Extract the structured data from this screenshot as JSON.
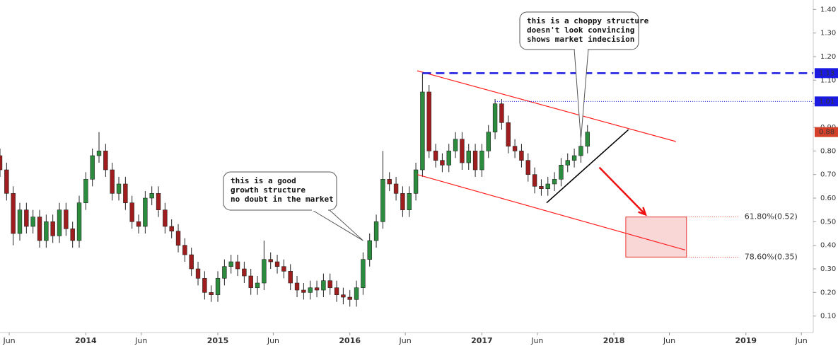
{
  "chart_data": {
    "type": "candlestick",
    "up_color": "#2a8c3c",
    "down_color": "#a01d1d",
    "xlim": [
      2013.35,
      2019.51
    ],
    "ylim": [
      0.03,
      1.44
    ],
    "xticks": [
      {
        "value": 2013.42,
        "label": "Jun"
      },
      2014,
      {
        "value": 2014.42,
        "label": "Jun"
      },
      2015,
      {
        "value": 2015.42,
        "label": "Jun"
      },
      2016,
      {
        "value": 2016.42,
        "label": "Jun"
      },
      2017,
      {
        "value": 2017.42,
        "label": "Jun"
      },
      2018,
      {
        "value": 2018.42,
        "label": "Jun"
      },
      2019,
      {
        "value": 2019.42,
        "label": "Jun"
      }
    ],
    "yticks": [
      {
        "value": 0.1,
        "label": "0.10"
      },
      {
        "value": 0.2,
        "label": "0.20"
      },
      {
        "value": 0.3,
        "label": "0.30"
      },
      {
        "value": 0.4,
        "label": "0.40"
      },
      {
        "value": 0.5,
        "label": "0.50"
      },
      {
        "value": 0.6,
        "label": "0.60"
      },
      {
        "value": 0.7,
        "label": "0.70"
      },
      {
        "value": 0.8,
        "label": "0.80"
      },
      {
        "value": 0.9,
        "label": "0.90"
      },
      {
        "value": 1.0,
        "label": "1.00"
      },
      {
        "value": 1.1,
        "label": "1.10"
      },
      {
        "value": 1.2,
        "label": "1.20"
      },
      {
        "value": 1.3,
        "label": "1.30"
      },
      {
        "value": 1.4,
        "label": "1.40"
      }
    ],
    "grid": false,
    "x": [
      2013.35,
      2013.4,
      2013.45,
      2013.5,
      2013.55,
      2013.6,
      2013.65,
      2013.7,
      2013.75,
      2013.8,
      2013.85,
      2013.9,
      2013.95,
      2014.0,
      2014.05,
      2014.1,
      2014.15,
      2014.2,
      2014.25,
      2014.3,
      2014.35,
      2014.4,
      2014.45,
      2014.5,
      2014.55,
      2014.6,
      2014.65,
      2014.7,
      2014.75,
      2014.8,
      2014.85,
      2014.9,
      2014.95,
      2015.0,
      2015.05,
      2015.1,
      2015.15,
      2015.2,
      2015.25,
      2015.3,
      2015.35,
      2015.4,
      2015.45,
      2015.5,
      2015.55,
      2015.6,
      2015.65,
      2015.7,
      2015.75,
      2015.8,
      2015.85,
      2015.9,
      2015.95,
      2016.0,
      2016.05,
      2016.1,
      2016.15,
      2016.2,
      2016.25,
      2016.3,
      2016.35,
      2016.4,
      2016.45,
      2016.5,
      2016.55,
      2016.6,
      2016.65,
      2016.7,
      2016.75,
      2016.8,
      2016.85,
      2016.9,
      2016.95,
      2017.0,
      2017.05,
      2017.1,
      2017.15,
      2017.2,
      2017.25,
      2017.3,
      2017.35,
      2017.4,
      2017.45,
      2017.5,
      2017.55,
      2017.6,
      2017.65,
      2017.7,
      2017.75,
      2017.8
    ],
    "open": [
      0.78,
      0.72,
      0.62,
      0.45,
      0.55,
      0.48,
      0.52,
      0.42,
      0.5,
      0.44,
      0.55,
      0.47,
      0.42,
      0.58,
      0.68,
      0.78,
      0.8,
      0.72,
      0.62,
      0.66,
      0.58,
      0.5,
      0.48,
      0.6,
      0.62,
      0.55,
      0.48,
      0.46,
      0.4,
      0.36,
      0.3,
      0.26,
      0.2,
      0.19,
      0.26,
      0.31,
      0.33,
      0.3,
      0.27,
      0.22,
      0.24,
      0.34,
      0.33,
      0.31,
      0.29,
      0.24,
      0.21,
      0.2,
      0.22,
      0.21,
      0.25,
      0.22,
      0.19,
      0.18,
      0.17,
      0.22,
      0.34,
      0.42,
      0.5,
      0.68,
      0.66,
      0.62,
      0.55,
      0.62,
      0.72,
      1.05,
      0.8,
      0.76,
      0.74,
      0.8,
      0.85,
      0.75,
      0.8,
      0.72,
      0.8,
      0.88,
      1.0,
      0.92,
      0.82,
      0.8,
      0.76,
      0.7,
      0.65,
      0.64,
      0.66,
      0.68,
      0.74,
      0.76,
      0.78,
      0.82
    ],
    "high": [
      0.81,
      0.75,
      0.65,
      0.58,
      0.58,
      0.55,
      0.55,
      0.53,
      0.53,
      0.58,
      0.58,
      0.5,
      0.61,
      0.71,
      0.81,
      0.88,
      0.83,
      0.75,
      0.69,
      0.69,
      0.61,
      0.53,
      0.63,
      0.65,
      0.65,
      0.58,
      0.51,
      0.49,
      0.43,
      0.39,
      0.33,
      0.29,
      0.23,
      0.29,
      0.34,
      0.36,
      0.36,
      0.33,
      0.3,
      0.27,
      0.42,
      0.37,
      0.36,
      0.34,
      0.32,
      0.27,
      0.24,
      0.25,
      0.25,
      0.28,
      0.28,
      0.25,
      0.22,
      0.21,
      0.25,
      0.37,
      0.45,
      0.53,
      0.8,
      0.71,
      0.69,
      0.65,
      0.65,
      0.75,
      1.13,
      1.08,
      0.83,
      0.79,
      0.83,
      0.88,
      0.88,
      0.83,
      0.83,
      0.83,
      0.91,
      1.02,
      1.02,
      0.95,
      0.85,
      0.83,
      0.79,
      0.73,
      0.68,
      0.69,
      0.71,
      0.77,
      0.79,
      0.81,
      0.85,
      0.91
    ],
    "low": [
      0.69,
      0.59,
      0.4,
      0.42,
      0.45,
      0.45,
      0.39,
      0.39,
      0.41,
      0.41,
      0.44,
      0.39,
      0.39,
      0.55,
      0.65,
      0.75,
      0.69,
      0.59,
      0.59,
      0.55,
      0.47,
      0.45,
      0.45,
      0.57,
      0.52,
      0.45,
      0.43,
      0.37,
      0.33,
      0.27,
      0.23,
      0.17,
      0.16,
      0.16,
      0.23,
      0.28,
      0.27,
      0.24,
      0.19,
      0.19,
      0.21,
      0.3,
      0.28,
      0.26,
      0.21,
      0.18,
      0.17,
      0.17,
      0.18,
      0.18,
      0.19,
      0.16,
      0.15,
      0.14,
      0.14,
      0.19,
      0.31,
      0.39,
      0.47,
      0.63,
      0.59,
      0.52,
      0.52,
      0.59,
      0.69,
      0.77,
      0.73,
      0.71,
      0.71,
      0.77,
      0.72,
      0.72,
      0.69,
      0.69,
      0.77,
      0.85,
      0.89,
      0.79,
      0.77,
      0.73,
      0.67,
      0.62,
      0.61,
      0.61,
      0.63,
      0.65,
      0.71,
      0.73,
      0.75,
      0.79
    ],
    "close": [
      0.72,
      0.62,
      0.45,
      0.55,
      0.48,
      0.52,
      0.42,
      0.5,
      0.44,
      0.55,
      0.47,
      0.42,
      0.58,
      0.68,
      0.78,
      0.8,
      0.72,
      0.62,
      0.66,
      0.58,
      0.5,
      0.48,
      0.6,
      0.62,
      0.55,
      0.48,
      0.46,
      0.4,
      0.36,
      0.3,
      0.26,
      0.2,
      0.19,
      0.26,
      0.31,
      0.33,
      0.3,
      0.27,
      0.22,
      0.24,
      0.34,
      0.33,
      0.31,
      0.29,
      0.24,
      0.21,
      0.2,
      0.22,
      0.21,
      0.25,
      0.22,
      0.19,
      0.18,
      0.17,
      0.22,
      0.34,
      0.42,
      0.5,
      0.68,
      0.66,
      0.62,
      0.55,
      0.62,
      0.72,
      1.05,
      0.8,
      0.76,
      0.74,
      0.8,
      0.85,
      0.75,
      0.8,
      0.72,
      0.8,
      0.88,
      1.0,
      0.92,
      0.82,
      0.8,
      0.76,
      0.7,
      0.65,
      0.64,
      0.66,
      0.68,
      0.74,
      0.76,
      0.78,
      0.82,
      0.88
    ],
    "last_price_color": "#d4402a",
    "price_lines": [
      {
        "value": 1.13,
        "from": 2016.55,
        "color": "#1a1ae0",
        "style": "dashed"
      },
      {
        "value": 1.01,
        "from": 2017.1,
        "color": "#1a1ae0",
        "style": "dotted"
      }
    ],
    "trendlines": [
      {
        "color": "#ff2020",
        "points": [
          [
            2016.51,
            1.14
          ],
          [
            2018.47,
            0.84
          ]
        ]
      },
      {
        "color": "#ff2020",
        "points": [
          [
            2016.51,
            0.7
          ],
          [
            2018.54,
            0.38
          ]
        ]
      },
      {
        "color": "#000000",
        "points": [
          [
            2017.49,
            0.58
          ],
          [
            2018.11,
            0.89
          ]
        ]
      }
    ],
    "arrow": {
      "color": "#ee1111",
      "points": [
        [
          2017.89,
          0.73
        ],
        [
          2018.24,
          0.53
        ]
      ]
    },
    "fib_zone": {
      "color": "#e53935",
      "x": [
        2018.09,
        2018.55
      ],
      "levels": [
        {
          "value": 0.52,
          "label": "61.80%(0.52)"
        },
        {
          "value": 0.35,
          "label": "78.60%(0.35)"
        }
      ]
    },
    "callouts": [
      {
        "lines": [
          "this is a good",
          "growth structure",
          "no doubt in the market"
        ],
        "target": [
          2016.1,
          0.42
        ]
      },
      {
        "lines": [
          "this is a choppy structure",
          "doesn't look convincing",
          "shows market indecision"
        ],
        "target": [
          2017.75,
          0.85
        ]
      }
    ]
  }
}
